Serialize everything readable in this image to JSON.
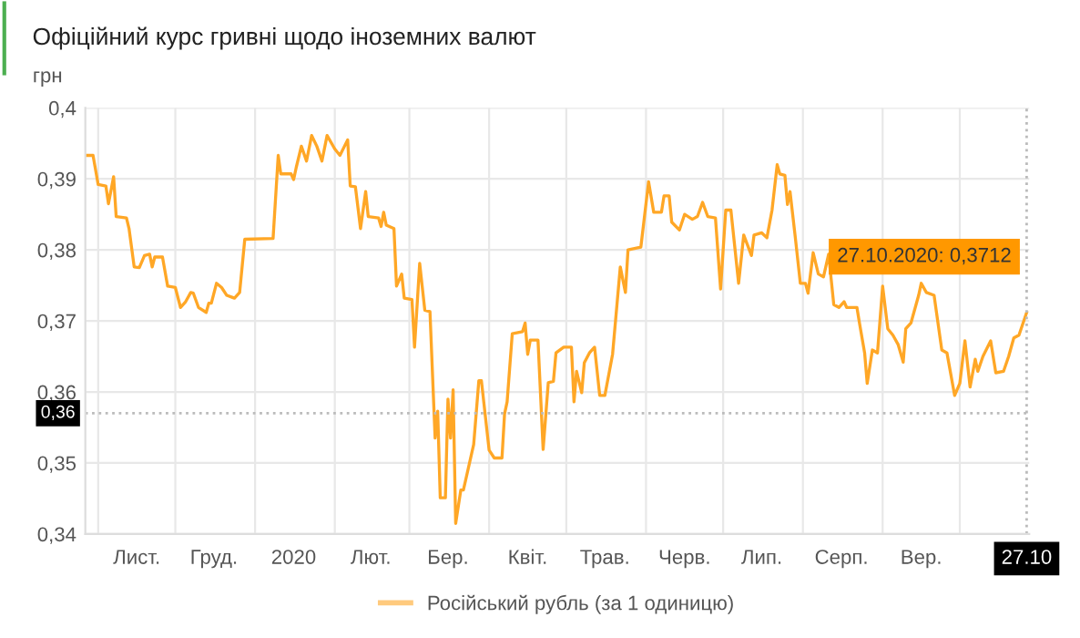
{
  "chart_data": {
    "type": "line",
    "title": "Офіційний курс гривні щодо іноземних валют",
    "ylabel": "грн",
    "x": [
      "2019-10-27",
      "2019-10-30",
      "2019-11-01",
      "2019-11-04",
      "2019-11-05",
      "2019-11-07",
      "2019-11-08",
      "2019-11-12",
      "2019-11-13",
      "2019-11-15",
      "2019-11-17",
      "2019-11-19",
      "2019-11-21",
      "2019-11-22",
      "2019-11-23",
      "2019-11-26",
      "2019-11-28",
      "2019-12-01",
      "2019-12-03",
      "2019-12-05",
      "2019-12-07",
      "2019-12-08",
      "2019-12-10",
      "2019-12-13",
      "2019-12-14",
      "2019-12-15",
      "2019-12-17",
      "2019-12-19",
      "2019-12-21",
      "2019-12-24",
      "2019-12-26",
      "2019-12-28",
      "2020-01-08",
      "2020-01-10",
      "2020-01-11",
      "2020-01-15",
      "2020-01-16",
      "2020-01-17",
      "2020-01-19",
      "2020-01-21",
      "2020-01-23",
      "2020-01-25",
      "2020-01-27",
      "2020-01-29",
      "2020-02-01",
      "2020-02-03",
      "2020-02-06",
      "2020-02-07",
      "2020-02-09",
      "2020-02-11",
      "2020-02-13",
      "2020-02-14",
      "2020-02-18",
      "2020-02-19",
      "2020-02-20",
      "2020-02-21",
      "2020-02-24",
      "2020-02-25",
      "2020-02-27",
      "2020-02-28",
      "2020-03-02",
      "2020-03-03",
      "2020-03-05",
      "2020-03-07",
      "2020-03-09",
      "2020-03-11",
      "2020-03-12",
      "2020-03-13",
      "2020-03-15",
      "2020-03-16",
      "2020-03-17",
      "2020-03-18",
      "2020-03-19",
      "2020-03-21",
      "2020-03-22",
      "2020-03-26",
      "2020-03-28",
      "2020-03-29",
      "2020-04-01",
      "2020-04-03",
      "2020-04-06",
      "2020-04-07",
      "2020-04-08",
      "2020-04-10",
      "2020-04-14",
      "2020-04-15",
      "2020-04-16",
      "2020-04-17",
      "2020-04-20",
      "2020-04-22",
      "2020-04-24",
      "2020-04-26",
      "2020-04-27",
      "2020-04-30",
      "2020-05-03",
      "2020-05-04",
      "2020-05-05",
      "2020-05-07",
      "2020-05-08",
      "2020-05-10",
      "2020-05-12",
      "2020-05-14",
      "2020-05-16",
      "2020-05-19",
      "2020-05-22",
      "2020-05-24",
      "2020-05-25",
      "2020-05-30",
      "2020-06-02",
      "2020-06-04",
      "2020-06-07",
      "2020-06-08",
      "2020-06-10",
      "2020-06-11",
      "2020-06-14",
      "2020-06-16",
      "2020-06-19",
      "2020-06-21",
      "2020-06-23",
      "2020-06-25",
      "2020-06-28",
      "2020-06-30",
      "2020-07-02",
      "2020-07-04",
      "2020-07-07",
      "2020-07-09",
      "2020-07-12",
      "2020-07-13",
      "2020-07-16",
      "2020-07-18",
      "2020-07-20",
      "2020-07-22",
      "2020-07-23",
      "2020-07-25",
      "2020-07-26",
      "2020-07-27",
      "2020-07-29",
      "2020-07-31",
      "2020-08-02",
      "2020-08-03",
      "2020-08-05",
      "2020-08-07",
      "2020-08-09",
      "2020-08-11",
      "2020-08-13",
      "2020-08-15",
      "2020-08-17",
      "2020-08-18",
      "2020-08-22",
      "2020-08-23",
      "2020-08-25",
      "2020-08-26",
      "2020-08-28",
      "2020-08-30",
      "2020-09-01",
      "2020-09-03",
      "2020-09-05",
      "2020-09-07",
      "2020-09-09",
      "2020-09-10",
      "2020-09-12",
      "2020-09-15",
      "2020-09-16",
      "2020-09-18",
      "2020-09-21",
      "2020-09-24",
      "2020-09-26",
      "2020-09-29",
      "2020-10-01",
      "2020-10-03",
      "2020-10-05",
      "2020-10-07",
      "2020-10-08",
      "2020-10-10",
      "2020-10-13",
      "2020-10-15",
      "2020-10-18",
      "2020-10-20",
      "2020-10-22",
      "2020-10-24",
      "2020-10-27"
    ],
    "series": [
      {
        "name": "Російський рубль (за 1 одиницю)",
        "color": "#ffa726",
        "values": [
          0.3933,
          0.3933,
          0.3892,
          0.389,
          0.3865,
          0.3903,
          0.3847,
          0.3845,
          0.383,
          0.3776,
          0.3775,
          0.3792,
          0.3794,
          0.3776,
          0.379,
          0.379,
          0.3749,
          0.3747,
          0.3719,
          0.3727,
          0.374,
          0.3739,
          0.3719,
          0.3712,
          0.3725,
          0.3725,
          0.3753,
          0.3747,
          0.3736,
          0.3732,
          0.374,
          0.3815,
          0.3816,
          0.3933,
          0.3907,
          0.3907,
          0.3899,
          0.3916,
          0.3946,
          0.3925,
          0.3961,
          0.3946,
          0.3925,
          0.3961,
          0.3942,
          0.3933,
          0.3955,
          0.389,
          0.3889,
          0.383,
          0.3882,
          0.3847,
          0.3845,
          0.3833,
          0.3853,
          0.3835,
          0.383,
          0.3749,
          0.3766,
          0.3732,
          0.373,
          0.3663,
          0.3781,
          0.3715,
          0.3713,
          0.3535,
          0.3573,
          0.3451,
          0.3451,
          0.359,
          0.3535,
          0.3603,
          0.3415,
          0.3462,
          0.3462,
          0.3526,
          0.3616,
          0.3616,
          0.3518,
          0.3507,
          0.3507,
          0.3569,
          0.3586,
          0.3682,
          0.3685,
          0.3697,
          0.3653,
          0.3673,
          0.3673,
          0.3519,
          0.3613,
          0.3615,
          0.3655,
          0.3663,
          0.3663,
          0.3586,
          0.3629,
          0.3599,
          0.3641,
          0.3655,
          0.3663,
          0.3595,
          0.3595,
          0.3653,
          0.3776,
          0.374,
          0.38,
          0.3804,
          0.3896,
          0.3853,
          0.3853,
          0.3876,
          0.3876,
          0.3839,
          0.3828,
          0.385,
          0.3843,
          0.3847,
          0.3867,
          0.3847,
          0.3845,
          0.3745,
          0.3856,
          0.3856,
          0.3753,
          0.3821,
          0.3792,
          0.3821,
          0.3824,
          0.3817,
          0.3856,
          0.392,
          0.3907,
          0.3905,
          0.3864,
          0.3882,
          0.3819,
          0.3753,
          0.3753,
          0.3739,
          0.3796,
          0.3766,
          0.3762,
          0.3794,
          0.3723,
          0.3719,
          0.3727,
          0.3719,
          0.3719,
          0.3697,
          0.3655,
          0.3612,
          0.3659,
          0.3655,
          0.3749,
          0.3689,
          0.368,
          0.3667,
          0.3642,
          0.3689,
          0.3697,
          0.3736,
          0.3753,
          0.374,
          0.3736,
          0.3659,
          0.3655,
          0.3595,
          0.3612,
          0.3672,
          0.3607,
          0.3646,
          0.3629,
          0.365,
          0.3672,
          0.3627,
          0.3629,
          0.365,
          0.3676,
          0.368,
          0.3712
        ]
      }
    ],
    "xlim": [
      "2019-10-27",
      "2020-10-28"
    ],
    "xticks": [
      {
        "value": "2019-11-01",
        "label": null
      },
      {
        "value": "2019-11-16",
        "label": "Лист."
      },
      {
        "value": "2019-12-01",
        "label": null
      },
      {
        "value": "2019-12-16",
        "label": "Груд."
      },
      {
        "value": "2020-01-01",
        "label": null
      },
      {
        "value": "2020-01-16",
        "label": "2020"
      },
      {
        "value": "2020-02-01",
        "label": null
      },
      {
        "value": "2020-02-15",
        "label": "Лют."
      },
      {
        "value": "2020-03-01",
        "label": null
      },
      {
        "value": "2020-03-16",
        "label": "Бер."
      },
      {
        "value": "2020-04-01",
        "label": null
      },
      {
        "value": "2020-04-16",
        "label": "Квіт."
      },
      {
        "value": "2020-05-01",
        "label": null
      },
      {
        "value": "2020-05-16",
        "label": "Трав."
      },
      {
        "value": "2020-06-01",
        "label": null
      },
      {
        "value": "2020-06-16",
        "label": "Черв."
      },
      {
        "value": "2020-07-01",
        "label": null
      },
      {
        "value": "2020-07-16",
        "label": "Лип."
      },
      {
        "value": "2020-08-01",
        "label": null
      },
      {
        "value": "2020-08-16",
        "label": "Серп."
      },
      {
        "value": "2020-09-01",
        "label": null
      },
      {
        "value": "2020-09-16",
        "label": "Вер."
      },
      {
        "value": "2020-10-01",
        "label": null
      },
      {
        "value": "2020-10-27",
        "label": "27.10"
      }
    ],
    "ylim": [
      0.34,
      0.4
    ],
    "yticks": [
      {
        "value": 0.34,
        "label": "0,34"
      },
      {
        "value": 0.35,
        "label": "0,35"
      },
      {
        "value": 0.36,
        "label": "0,36"
      },
      {
        "value": 0.37,
        "label": "0,37"
      },
      {
        "value": 0.38,
        "label": "0,38"
      },
      {
        "value": 0.39,
        "label": "0,39"
      },
      {
        "value": 0.4,
        "label": "0,4"
      }
    ],
    "ref_lines": [
      {
        "axis": "y",
        "value": 0.357,
        "label": "0,36",
        "color": "#bbbbbb",
        "line_style": "dotted"
      },
      {
        "axis": "x",
        "value": "2020-10-27",
        "color": "#bbbbbb",
        "line_style": "dotted"
      }
    ],
    "annotations": [
      {
        "text": "27.10.2020: 0,3712",
        "x": "2020-10-27",
        "y": 0.3712
      }
    ],
    "grid": true,
    "legend": "bottom",
    "marker": "none",
    "line_style": "solid"
  }
}
